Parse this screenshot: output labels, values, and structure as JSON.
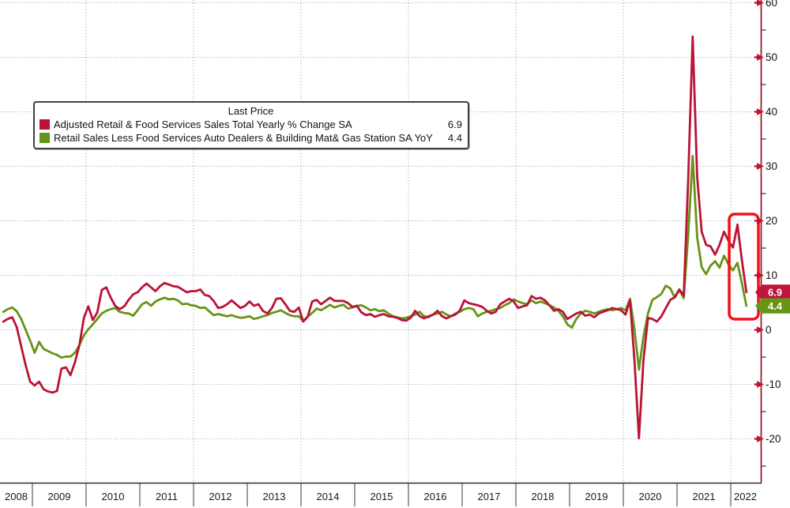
{
  "chart_data": {
    "type": "line",
    "title": "",
    "legend_title": "Last Price",
    "legend_position": "top-left",
    "grid": "dotted",
    "freq": "monthly",
    "start_month": "2008-06",
    "end_month": "2022-04",
    "x_years": [
      2008,
      2009,
      2010,
      2011,
      2012,
      2013,
      2014,
      2015,
      2016,
      2017,
      2018,
      2019,
      2020,
      2021,
      2022
    ],
    "ylim": [
      -28,
      60.5
    ],
    "y_major_ticks": [
      60,
      50,
      40,
      30,
      20,
      10,
      0,
      -10,
      -20
    ],
    "y_minor_ticks": [
      55,
      45,
      35,
      25,
      15,
      5,
      -5,
      -15,
      -25
    ],
    "axis_color": "#8e1326",
    "bottom_axis_color": "#2e2e2e",
    "grid_color": "#a8a8a8",
    "tick_arrow_color": "#c8102e",
    "highlight_box_color": "#f31019",
    "series": [
      {
        "name": "Adjusted Retail & Food Services Sales Total Yearly % Change SA",
        "last_price": "6.9",
        "color": "#bb1236",
        "tag_bg": "#c0143c",
        "values": [
          1.5,
          2.0,
          2.3,
          0.5,
          -3.0,
          -6.5,
          -9.5,
          -10.2,
          -9.5,
          -10.9,
          -11.3,
          -11.5,
          -11.2,
          -7.1,
          -6.9,
          -8.3,
          -6.0,
          -2.8,
          2.2,
          4.3,
          1.8,
          3.2,
          7.3,
          7.8,
          5.9,
          4.4,
          3.8,
          4.3,
          5.5,
          6.5,
          6.9,
          7.8,
          8.5,
          7.8,
          7.1,
          8.0,
          8.6,
          8.3,
          8.0,
          7.9,
          7.4,
          6.9,
          7.1,
          7.1,
          7.4,
          6.4,
          6.2,
          5.3,
          4.0,
          4.2,
          4.7,
          5.4,
          4.7,
          4.0,
          4.4,
          5.2,
          4.4,
          4.7,
          3.5,
          3.0,
          4.0,
          5.7,
          5.8,
          4.7,
          3.5,
          3.3,
          4.1,
          1.5,
          2.4,
          5.2,
          5.5,
          4.7,
          5.3,
          5.9,
          5.3,
          5.3,
          5.3,
          4.9,
          4.2,
          4.4,
          3.2,
          2.7,
          2.9,
          2.4,
          2.7,
          2.9,
          2.5,
          2.4,
          2.2,
          1.8,
          1.7,
          2.2,
          3.5,
          2.5,
          2.1,
          2.5,
          2.8,
          3.5,
          2.5,
          2.1,
          2.5,
          2.8,
          3.6,
          5.4,
          4.9,
          4.7,
          4.5,
          4.2,
          3.5,
          3.0,
          3.3,
          4.7,
          5.2,
          5.7,
          5.2,
          4.0,
          4.3,
          4.5,
          6.2,
          5.7,
          5.9,
          5.4,
          4.5,
          3.5,
          3.8,
          3.3,
          2.0,
          2.5,
          3.0,
          3.3,
          2.6,
          2.8,
          2.3,
          3.0,
          3.3,
          3.6,
          4.0,
          3.8,
          3.6,
          2.8,
          5.4,
          -5.8,
          -19.9,
          -5.6,
          2.2,
          2.0,
          1.5,
          2.5,
          4.0,
          5.5,
          6.0,
          7.4,
          6.3,
          27.9,
          53.8,
          28.1,
          18.0,
          15.6,
          15.3,
          13.8,
          15.6,
          18.0,
          16.3,
          15.1,
          19.3,
          12.7,
          6.9
        ]
      },
      {
        "name": "Retail Sales Less Food Services Auto Dealers & Building Mat& Gas Station SA YoY",
        "last_price": "4.4",
        "color": "#669416",
        "tag_bg": "#669416",
        "values": [
          3.3,
          3.8,
          4.1,
          3.4,
          2.0,
          0.0,
          -2.0,
          -4.2,
          -2.2,
          -3.5,
          -3.9,
          -4.3,
          -4.6,
          -5.1,
          -4.9,
          -4.9,
          -4.2,
          -2.8,
          -1.0,
          0.1,
          1.0,
          2.0,
          3.0,
          3.5,
          3.8,
          4.0,
          3.3,
          3.1,
          3.0,
          2.6,
          3.6,
          4.7,
          5.1,
          4.4,
          5.2,
          5.6,
          5.9,
          5.6,
          5.7,
          5.4,
          4.7,
          4.8,
          4.5,
          4.4,
          4.0,
          4.1,
          3.4,
          2.7,
          2.9,
          2.7,
          2.5,
          2.7,
          2.4,
          2.2,
          2.3,
          2.5,
          2.0,
          2.2,
          2.5,
          2.7,
          3.1,
          3.3,
          3.6,
          3.1,
          2.7,
          2.5,
          2.5,
          1.6,
          2.4,
          3.1,
          3.9,
          3.6,
          4.1,
          4.6,
          4.1,
          4.4,
          4.6,
          3.9,
          4.1,
          4.4,
          4.5,
          4.1,
          3.6,
          3.8,
          3.4,
          3.6,
          3.0,
          2.5,
          2.3,
          2.1,
          2.2,
          2.5,
          2.8,
          3.3,
          2.5,
          2.3,
          2.8,
          3.0,
          3.3,
          2.8,
          2.5,
          3.0,
          3.3,
          3.8,
          4.0,
          3.8,
          2.5,
          3.0,
          3.3,
          3.5,
          3.8,
          4.0,
          4.5,
          4.9,
          5.6,
          5.2,
          4.9,
          4.7,
          5.4,
          4.9,
          5.2,
          4.9,
          4.5,
          4.1,
          3.5,
          2.5,
          1.0,
          0.4,
          2.0,
          3.0,
          3.5,
          3.3,
          3.0,
          3.3,
          3.6,
          3.8,
          3.6,
          3.8,
          4.0,
          3.6,
          5.7,
          0.0,
          -7.3,
          -1.3,
          3.0,
          5.5,
          6.0,
          6.6,
          8.1,
          7.6,
          5.9,
          7.3,
          5.8,
          17.5,
          31.9,
          17.0,
          11.5,
          10.2,
          11.8,
          12.6,
          11.4,
          13.6,
          12.0,
          10.9,
          12.3,
          8.5,
          4.4
        ]
      }
    ],
    "annotations": {
      "highlight_box": {
        "note": "red rounded box highlighting final 2022 plunge"
      }
    }
  }
}
